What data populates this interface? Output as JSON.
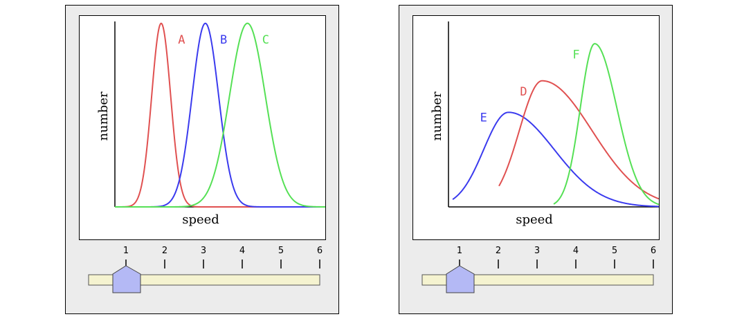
{
  "colors": {
    "red": "#e05050",
    "blue": "#3a3aee",
    "green": "#55e055",
    "track": "#f5f3d0",
    "handle": "#b4b9f5"
  },
  "chart_data": [
    {
      "type": "line",
      "xlabel": "speed",
      "ylabel": "number",
      "xlim": [
        0,
        1
      ],
      "ylim": [
        0,
        1
      ],
      "series": [
        {
          "name": "A",
          "color": "red",
          "mu": 0.22,
          "sigma": 0.045,
          "amp": 0.99,
          "skew": 0,
          "start": 0.0
        },
        {
          "name": "B",
          "color": "blue",
          "mu": 0.43,
          "sigma": 0.063,
          "amp": 0.99,
          "skew": 0,
          "start": 0.0
        },
        {
          "name": "C",
          "color": "green",
          "mu": 0.63,
          "sigma": 0.085,
          "amp": 0.99,
          "skew": 0,
          "start": 0.0
        }
      ]
    },
    {
      "type": "line",
      "xlabel": "speed",
      "ylabel": "number",
      "xlim": [
        0,
        1
      ],
      "ylim": [
        0,
        1
      ],
      "series": [
        {
          "name": "E",
          "color": "blue",
          "mu": 0.285,
          "sigma": 0.16,
          "amp": 0.51,
          "skew": 3,
          "start": 0.02
        },
        {
          "name": "D",
          "color": "red",
          "mu": 0.445,
          "sigma": 0.16,
          "amp": 0.68,
          "skew": 4,
          "start": 0.24
        },
        {
          "name": "F",
          "color": "green",
          "mu": 0.695,
          "sigma": 0.085,
          "amp": 0.88,
          "skew": 2,
          "start": 0.5
        }
      ]
    }
  ],
  "slider": {
    "tick_labels": [
      "1",
      "2",
      "3",
      "4",
      "5",
      "6"
    ],
    "value": 1
  }
}
